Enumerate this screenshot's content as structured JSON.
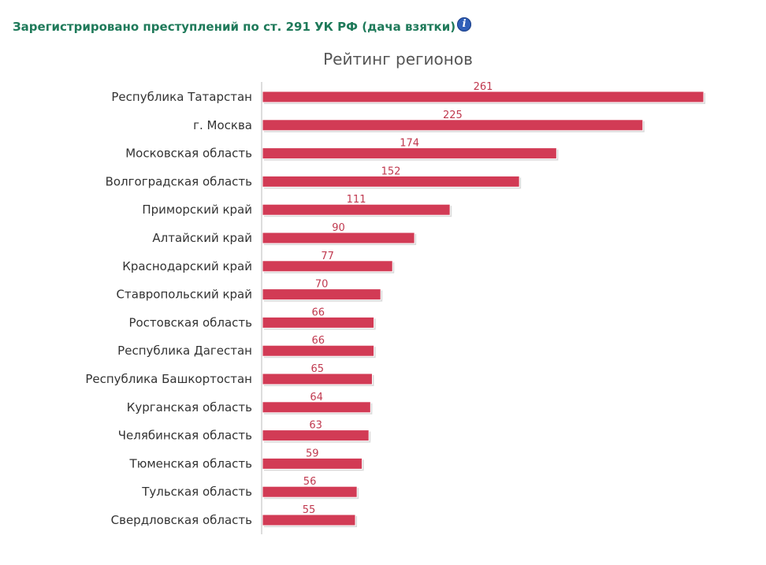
{
  "header": {
    "title": "Зарегистрировано преступлений по ст. 291 УК РФ (дача взятки)",
    "info_icon": "info-icon"
  },
  "colors": {
    "bar": "#d23b55",
    "bar_shadow": "#d9d9d9",
    "value_label": "#c0394f",
    "category_label": "#333333",
    "title": "#555555",
    "header": "#1f7a5a",
    "axis": "#bbbbbb"
  },
  "chart_data": {
    "type": "bar",
    "orientation": "horizontal",
    "title": "Рейтинг регионов",
    "categories": [
      "Республика Татарстан",
      "г. Москва",
      "Московская область",
      "Волгоградская область",
      "Приморский край",
      "Алтайский край",
      "Краснодарский край",
      "Ставропольский край",
      "Ростовская область",
      "Республика Дагестан",
      "Республика Башкортостан",
      "Курганская область",
      "Челябинская область",
      "Тюменская область",
      "Тульская область",
      "Свердловская область"
    ],
    "values": [
      261,
      225,
      174,
      152,
      111,
      90,
      77,
      70,
      66,
      66,
      65,
      64,
      63,
      59,
      56,
      55
    ],
    "xlim": [
      0,
      261
    ],
    "grid": false,
    "legend": "none"
  }
}
